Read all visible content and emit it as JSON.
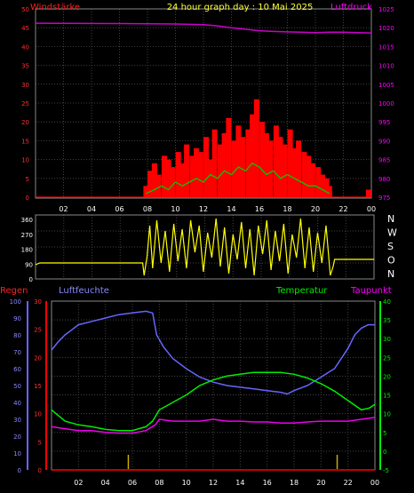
{
  "chart_data": [
    {
      "type": "bar",
      "title": "24 hour graph day : 10 Mai 2025",
      "left_axis_label": "Windstärke",
      "right_axis_label": "Luftdruck",
      "left_ylim": [
        0,
        50
      ],
      "left_ticks": [
        "0",
        "5",
        "10",
        "15",
        "20",
        "25",
        "30",
        "35",
        "40",
        "45",
        "50"
      ],
      "right_ylim": [
        975,
        1025
      ],
      "right_ticks": [
        "975",
        "980",
        "985",
        "990",
        "995",
        "1000",
        "1005",
        "1010",
        "1015",
        "1020",
        "1025"
      ],
      "x_ticks": [
        "02",
        "04",
        "06",
        "08",
        "10",
        "12",
        "14",
        "16",
        "18",
        "20",
        "22",
        "00"
      ],
      "xlim": [
        0,
        24
      ],
      "grid": true,
      "colors": {
        "wind": "#ff0000",
        "wind_avg": "#00cc00",
        "pressure": "#cc00cc",
        "gust": "#ffffff"
      },
      "wind_gust": [
        [
          7.9,
          3
        ],
        [
          8.2,
          7
        ],
        [
          8.5,
          9
        ],
        [
          8.8,
          6
        ],
        [
          9.2,
          11
        ],
        [
          9.5,
          10
        ],
        [
          9.8,
          8
        ],
        [
          10.2,
          12
        ],
        [
          10.5,
          9
        ],
        [
          10.8,
          14
        ],
        [
          11.2,
          11
        ],
        [
          11.5,
          13
        ],
        [
          11.8,
          12
        ],
        [
          12.2,
          16
        ],
        [
          12.5,
          10
        ],
        [
          12.8,
          18
        ],
        [
          13.2,
          14
        ],
        [
          13.5,
          17
        ],
        [
          13.8,
          21
        ],
        [
          14.2,
          15
        ],
        [
          14.5,
          19
        ],
        [
          14.8,
          16
        ],
        [
          15.2,
          18
        ],
        [
          15.5,
          22
        ],
        [
          15.8,
          26
        ],
        [
          16.2,
          20
        ],
        [
          16.5,
          17
        ],
        [
          16.8,
          15
        ],
        [
          17.2,
          19
        ],
        [
          17.5,
          16
        ],
        [
          17.8,
          14
        ],
        [
          18.2,
          18
        ],
        [
          18.5,
          13
        ],
        [
          18.8,
          15
        ],
        [
          19.2,
          12
        ],
        [
          19.5,
          11
        ],
        [
          19.8,
          9
        ],
        [
          20.2,
          8
        ],
        [
          20.5,
          6
        ],
        [
          20.8,
          5
        ],
        [
          21.0,
          3
        ],
        [
          23.8,
          2
        ]
      ],
      "wind_avg": [
        [
          7.9,
          1
        ],
        [
          8.5,
          2
        ],
        [
          9,
          3
        ],
        [
          9.5,
          2
        ],
        [
          10,
          4
        ],
        [
          10.5,
          3
        ],
        [
          11,
          4
        ],
        [
          11.5,
          5
        ],
        [
          12,
          4
        ],
        [
          12.5,
          6
        ],
        [
          13,
          5
        ],
        [
          13.5,
          7
        ],
        [
          14,
          6
        ],
        [
          14.5,
          8
        ],
        [
          15,
          7
        ],
        [
          15.5,
          9
        ],
        [
          16,
          8
        ],
        [
          16.5,
          6
        ],
        [
          17,
          7
        ],
        [
          17.5,
          5
        ],
        [
          18,
          6
        ],
        [
          18.5,
          5
        ],
        [
          19,
          4
        ],
        [
          19.5,
          3
        ],
        [
          20,
          3
        ],
        [
          20.5,
          2
        ],
        [
          21,
          1
        ]
      ],
      "pressure": [
        [
          0,
          1021.2
        ],
        [
          6,
          1021.1
        ],
        [
          10,
          1021.0
        ],
        [
          12,
          1020.8
        ],
        [
          13,
          1020.5
        ],
        [
          14,
          1020.0
        ],
        [
          15,
          1019.6
        ],
        [
          16,
          1019.2
        ],
        [
          17,
          1019.0
        ],
        [
          18,
          1018.9
        ],
        [
          19,
          1018.8
        ],
        [
          20,
          1018.7
        ],
        [
          21,
          1018.8
        ],
        [
          22,
          1018.8
        ],
        [
          23,
          1018.7
        ],
        [
          24,
          1018.6
        ]
      ]
    },
    {
      "type": "line",
      "title": "",
      "left_ylim": [
        0,
        360
      ],
      "left_ticks": [
        "0",
        "90",
        "180",
        "270",
        "360"
      ],
      "right_labels": [
        "N",
        "W",
        "S",
        "O",
        "N"
      ],
      "xlim": [
        0,
        24
      ],
      "grid": true,
      "colors": {
        "direction": "#ffff00"
      },
      "direction": [
        [
          0,
          80
        ],
        [
          0.3,
          90
        ],
        [
          7.6,
          90
        ],
        [
          7.7,
          20
        ],
        [
          7.9,
          120
        ],
        [
          8.1,
          300
        ],
        [
          8.3,
          60
        ],
        [
          8.6,
          330
        ],
        [
          8.9,
          90
        ],
        [
          9.2,
          270
        ],
        [
          9.5,
          40
        ],
        [
          9.8,
          310
        ],
        [
          10.1,
          100
        ],
        [
          10.4,
          280
        ],
        [
          10.7,
          60
        ],
        [
          11.0,
          330
        ],
        [
          11.3,
          150
        ],
        [
          11.6,
          300
        ],
        [
          11.9,
          40
        ],
        [
          12.2,
          260
        ],
        [
          12.5,
          120
        ],
        [
          12.8,
          340
        ],
        [
          13.1,
          70
        ],
        [
          13.4,
          290
        ],
        [
          13.7,
          30
        ],
        [
          14.0,
          250
        ],
        [
          14.3,
          110
        ],
        [
          14.6,
          320
        ],
        [
          14.9,
          60
        ],
        [
          15.2,
          280
        ],
        [
          15.5,
          20
        ],
        [
          15.8,
          300
        ],
        [
          16.1,
          140
        ],
        [
          16.4,
          330
        ],
        [
          16.7,
          50
        ],
        [
          17.0,
          270
        ],
        [
          17.3,
          100
        ],
        [
          17.6,
          310
        ],
        [
          17.9,
          30
        ],
        [
          18.2,
          250
        ],
        [
          18.5,
          120
        ],
        [
          18.8,
          340
        ],
        [
          19.1,
          60
        ],
        [
          19.4,
          290
        ],
        [
          19.7,
          40
        ],
        [
          20.0,
          260
        ],
        [
          20.3,
          90
        ],
        [
          20.6,
          300
        ],
        [
          20.9,
          20
        ],
        [
          21.1,
          70
        ],
        [
          21.2,
          110
        ],
        [
          24,
          110
        ]
      ]
    },
    {
      "type": "line",
      "title": "",
      "series_labels": {
        "rain": "Regen",
        "humidity": "Luftfeuchte",
        "temperature": "Temperatur",
        "dewpoint": "Taupunkt"
      },
      "humidity_ylim": [
        0,
        100
      ],
      "humidity_ticks": [
        "0",
        "10",
        "20",
        "30",
        "40",
        "50",
        "60",
        "70",
        "80",
        "90",
        "100"
      ],
      "rain_ylim": [
        0,
        30
      ],
      "rain_ticks": [
        "0",
        "5",
        "10",
        "15",
        "20",
        "25",
        "30"
      ],
      "temp_ylim": [
        -5,
        40
      ],
      "temp_ticks": [
        "-5",
        "0",
        "5",
        "10",
        "15",
        "20",
        "25",
        "30",
        "35",
        "40"
      ],
      "x_ticks": [
        "02",
        "04",
        "06",
        "08",
        "10",
        "12",
        "14",
        "16",
        "18",
        "20",
        "22",
        "00"
      ],
      "xlim": [
        0,
        24
      ],
      "grid": true,
      "colors": {
        "rain": "#ff0000",
        "humidity": "#6666ff",
        "temperature": "#00ee00",
        "dewpoint": "#ee00ee",
        "rain_marker": "#ccaa00"
      },
      "humidity": [
        [
          0,
          71
        ],
        [
          0.5,
          76
        ],
        [
          1,
          80
        ],
        [
          1.5,
          83
        ],
        [
          2,
          86
        ],
        [
          3,
          88
        ],
        [
          4,
          90
        ],
        [
          5,
          92
        ],
        [
          6,
          93
        ],
        [
          7,
          94
        ],
        [
          7.5,
          93
        ],
        [
          7.8,
          80
        ],
        [
          8.3,
          73
        ],
        [
          9,
          66
        ],
        [
          10,
          60
        ],
        [
          11,
          55
        ],
        [
          12,
          52
        ],
        [
          13,
          50
        ],
        [
          14,
          49
        ],
        [
          15,
          48
        ],
        [
          16,
          47
        ],
        [
          17,
          46
        ],
        [
          17.5,
          45
        ],
        [
          18,
          47
        ],
        [
          19,
          50
        ],
        [
          20,
          55
        ],
        [
          21,
          60
        ],
        [
          22,
          72
        ],
        [
          22.5,
          80
        ],
        [
          23,
          84
        ],
        [
          23.5,
          86
        ],
        [
          24,
          86
        ]
      ],
      "temperature": [
        [
          0,
          11
        ],
        [
          1,
          8
        ],
        [
          2,
          7
        ],
        [
          3,
          6.5
        ],
        [
          4,
          5.8
        ],
        [
          5,
          5.5
        ],
        [
          6,
          5.5
        ],
        [
          7,
          6.5
        ],
        [
          7.5,
          8
        ],
        [
          8,
          11
        ],
        [
          9,
          13
        ],
        [
          10,
          15
        ],
        [
          11,
          17.5
        ],
        [
          12,
          19
        ],
        [
          13,
          20
        ],
        [
          14,
          20.5
        ],
        [
          15,
          21
        ],
        [
          16,
          21
        ],
        [
          17,
          21
        ],
        [
          18,
          20.5
        ],
        [
          19,
          19.5
        ],
        [
          20,
          18
        ],
        [
          21,
          16
        ],
        [
          22,
          13.5
        ],
        [
          23,
          11
        ],
        [
          23.6,
          11.5
        ],
        [
          24,
          12.5
        ]
      ],
      "dewpoint": [
        [
          0,
          6.5
        ],
        [
          1,
          6
        ],
        [
          2,
          5.5
        ],
        [
          3,
          5.5
        ],
        [
          4,
          5
        ],
        [
          5,
          4.8
        ],
        [
          6,
          4.8
        ],
        [
          7,
          5.5
        ],
        [
          7.7,
          7
        ],
        [
          8,
          8.5
        ],
        [
          9,
          8
        ],
        [
          10,
          8
        ],
        [
          11,
          8
        ],
        [
          12,
          8.5
        ],
        [
          13,
          8
        ],
        [
          14,
          8
        ],
        [
          15,
          7.8
        ],
        [
          16,
          7.8
        ],
        [
          17,
          7.5
        ],
        [
          18,
          7.5
        ],
        [
          19,
          7.8
        ],
        [
          20,
          8
        ],
        [
          21,
          8
        ],
        [
          22,
          8
        ],
        [
          23,
          8.5
        ],
        [
          24,
          9
        ]
      ],
      "rain": [
        [
          0,
          0
        ],
        [
          24,
          0
        ]
      ],
      "rain_markers": [
        5.7,
        21.2
      ]
    }
  ]
}
